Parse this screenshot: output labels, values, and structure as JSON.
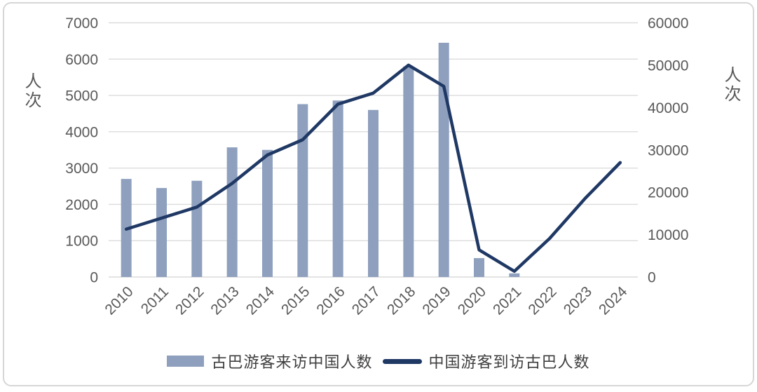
{
  "chart_data": {
    "type": "combo-bar-line",
    "categories": [
      "2010",
      "2011",
      "2012",
      "2013",
      "2014",
      "2015",
      "2016",
      "2017",
      "2018",
      "2019",
      "2020",
      "2021",
      "2022",
      "2023",
      "2024"
    ],
    "series": [
      {
        "name": "古巴游客来访中国人数",
        "type": "bar",
        "axis": "left",
        "values": [
          2700,
          2450,
          2650,
          3570,
          3500,
          4760,
          4860,
          4600,
          5800,
          6450,
          520,
          100,
          null,
          null,
          null
        ]
      },
      {
        "name": "中国游客到访古巴人数",
        "type": "line",
        "axis": "right",
        "values": [
          11300,
          13900,
          16500,
          22100,
          28800,
          32400,
          40800,
          43400,
          50000,
          45000,
          6400,
          1350,
          9100,
          18500,
          27000
        ]
      }
    ],
    "left_axis": {
      "title": "人次",
      "min": 0,
      "max": 7000,
      "step": 1000,
      "ticks": [
        0,
        1000,
        2000,
        3000,
        4000,
        5000,
        6000,
        7000
      ]
    },
    "right_axis": {
      "title": "人次",
      "min": 0,
      "max": 60000,
      "step": 10000,
      "ticks": [
        0,
        10000,
        20000,
        30000,
        40000,
        50000,
        60000
      ]
    },
    "grid": "horizontal",
    "legend_position": "bottom"
  },
  "legend": {
    "bar_label": "古巴游客来访中国人数",
    "line_label": "中国游客到访古巴人数"
  },
  "axis_titles": {
    "left": "人次",
    "right": "人次"
  },
  "colors": {
    "bar": "#8EA0BE",
    "line": "#1F3864",
    "grid": "#DCDCDC",
    "tick_text": "#595959",
    "legend_text": "#3F3F3F",
    "border": "#D6D6D6",
    "background": "#FFFFFF"
  }
}
